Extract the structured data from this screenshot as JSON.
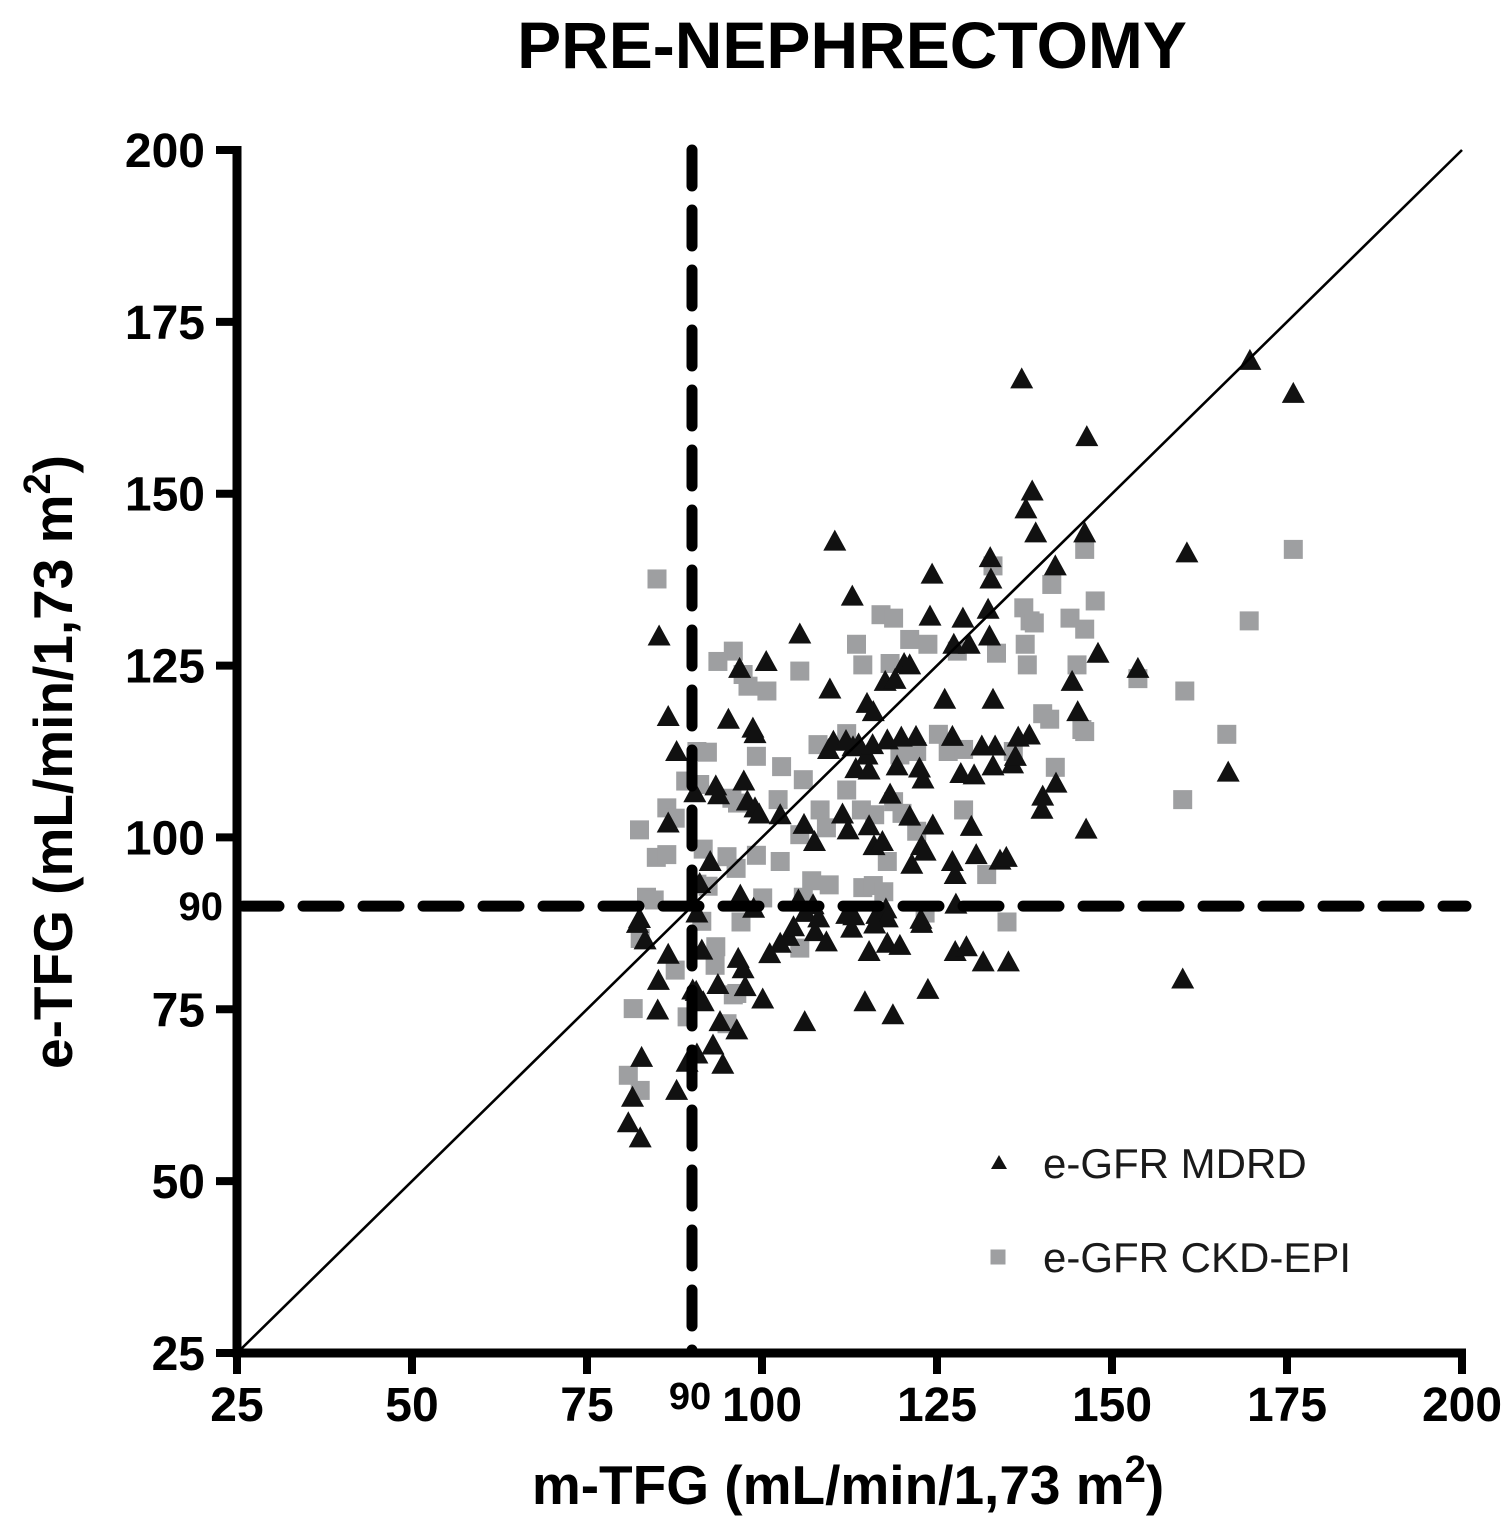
{
  "title": "PRE-NEPHRECTOMY",
  "chart_data": {
    "type": "scatter",
    "title": "PRE-NEPHRECTOMY",
    "xlabel": "m-TFG (mL/min/1,73 m²)",
    "ylabel": "e-TFG (mL/min/1,73 m²)",
    "xlim": [
      25,
      200
    ],
    "ylim": [
      25,
      200
    ],
    "x_ticks": [
      25,
      50,
      75,
      100,
      125,
      150,
      175,
      200
    ],
    "y_ticks": [
      25,
      50,
      75,
      100,
      125,
      150,
      175,
      200
    ],
    "threshold_value": 90,
    "threshold_label": "90",
    "grid": false,
    "identity_line": true,
    "reference_lines": {
      "vertical_x": 90,
      "horizontal_y": 90,
      "style": "dashed"
    },
    "legend_position": "bottom-right",
    "colors": {
      "mdrd": "#111111",
      "ckdepi": "#9e9fa1",
      "axis": "#000000"
    },
    "series": [
      {
        "name": "e-GFR MDRD",
        "marker": "triangle",
        "color": "#111111",
        "points": [
          [
            137.1,
            166.7
          ],
          [
            138.6,
            150.4
          ],
          [
            137.7,
            147.8
          ],
          [
            139.1,
            144.3
          ],
          [
            110.4,
            143.1
          ],
          [
            132.6,
            140.7
          ],
          [
            132.7,
            137.6
          ],
          [
            124.3,
            138.3
          ],
          [
            112.9,
            135.1
          ],
          [
            124.0,
            132.2
          ],
          [
            128.7,
            131.9
          ],
          [
            132.3,
            133.2
          ],
          [
            105.4,
            129.6
          ],
          [
            85.3,
            129.3
          ],
          [
            132.5,
            129.3
          ],
          [
            127.4,
            128.1
          ],
          [
            129.6,
            128.1
          ],
          [
            96.8,
            124.6
          ],
          [
            100.6,
            125.6
          ],
          [
            120.3,
            125.3
          ],
          [
            121.1,
            125.1
          ],
          [
            117.6,
            122.7
          ],
          [
            119.0,
            123.0
          ],
          [
            109.7,
            121.6
          ],
          [
            115.0,
            119.5
          ],
          [
            115.9,
            118.3
          ],
          [
            126.1,
            120.1
          ],
          [
            133.0,
            120.1
          ],
          [
            86.6,
            117.6
          ],
          [
            95.2,
            117.2
          ],
          [
            98.7,
            115.9
          ],
          [
            169.7,
            169.4
          ],
          [
            175.9,
            164.6
          ],
          [
            146.4,
            158.3
          ],
          [
            146.1,
            144.3
          ],
          [
            141.9,
            139.5
          ],
          [
            160.7,
            141.4
          ],
          [
            148.0,
            126.8
          ],
          [
            153.7,
            124.6
          ],
          [
            144.3,
            122.7
          ],
          [
            145.1,
            118.3
          ],
          [
            99.0,
            115.1
          ],
          [
            109.5,
            112.8
          ],
          [
            110.2,
            114.0
          ],
          [
            112.0,
            114.1
          ],
          [
            113.0,
            113.2
          ],
          [
            113.8,
            113.6
          ],
          [
            115.0,
            112.0
          ],
          [
            115.8,
            113.5
          ],
          [
            117.9,
            114.2
          ],
          [
            119.9,
            114.6
          ],
          [
            122.0,
            114.7
          ],
          [
            127.2,
            114.7
          ],
          [
            131.4,
            113.3
          ],
          [
            133.3,
            113.3
          ],
          [
            136.6,
            114.6
          ],
          [
            138.2,
            114.9
          ],
          [
            87.8,
            112.5
          ],
          [
            113.4,
            110.0
          ],
          [
            115.3,
            109.8
          ],
          [
            119.3,
            110.4
          ],
          [
            122.5,
            110.1
          ],
          [
            123.0,
            108.5
          ],
          [
            128.4,
            109.3
          ],
          [
            130.3,
            109.1
          ],
          [
            133.0,
            110.4
          ],
          [
            135.8,
            110.7
          ],
          [
            136.2,
            111.8
          ],
          [
            93.4,
            107.5
          ],
          [
            97.4,
            108.2
          ],
          [
            93.8,
            106.2
          ],
          [
            90.4,
            106.5
          ],
          [
            97.9,
            105.3
          ],
          [
            99.0,
            104.3
          ],
          [
            99.6,
            103.4
          ],
          [
            102.6,
            103.3
          ],
          [
            106.0,
            101.9
          ],
          [
            107.5,
            99.4
          ],
          [
            111.5,
            103.4
          ],
          [
            112.3,
            101.1
          ],
          [
            115.3,
            101.7
          ],
          [
            116.0,
            98.8
          ],
          [
            117.2,
            99.4
          ],
          [
            118.3,
            106.3
          ],
          [
            121.1,
            103.1
          ],
          [
            121.4,
            96.1
          ],
          [
            122.8,
            98.8
          ],
          [
            123.3,
            98.0
          ],
          [
            124.4,
            101.8
          ],
          [
            127.2,
            96.5
          ],
          [
            127.6,
            94.6
          ],
          [
            129.9,
            101.6
          ],
          [
            130.6,
            97.5
          ],
          [
            134.0,
            96.7
          ],
          [
            134.9,
            97.1
          ],
          [
            86.6,
            102.1
          ],
          [
            92.6,
            96.5
          ],
          [
            82.5,
            88.2
          ],
          [
            83.3,
            85.1
          ],
          [
            90.7,
            89.0
          ],
          [
            91.1,
            93.3
          ],
          [
            96.9,
            91.6
          ],
          [
            98.8,
            89.7
          ],
          [
            105.2,
            90.9
          ],
          [
            107.3,
            90.2
          ],
          [
            106.2,
            89.1
          ],
          [
            108.1,
            88.3
          ],
          [
            112.1,
            88.8
          ],
          [
            113.1,
            88.6
          ],
          [
            116.4,
            88.8
          ],
          [
            117.7,
            89.6
          ],
          [
            117.9,
            88.3
          ],
          [
            122.7,
            88.1
          ],
          [
            127.7,
            90.3
          ],
          [
            82.2,
            87.5
          ],
          [
            86.6,
            83.0
          ],
          [
            91.4,
            83.6
          ],
          [
            96.6,
            82.4
          ],
          [
            97.3,
            80.9
          ],
          [
            103.8,
            85.6
          ],
          [
            102.6,
            84.6
          ],
          [
            101.1,
            83.1
          ],
          [
            104.5,
            87.0
          ],
          [
            107.6,
            86.3
          ],
          [
            109.2,
            84.8
          ],
          [
            112.8,
            86.8
          ],
          [
            115.3,
            83.4
          ],
          [
            116.1,
            87.4
          ],
          [
            117.9,
            84.6
          ],
          [
            119.7,
            84.3
          ],
          [
            122.8,
            87.5
          ],
          [
            127.6,
            83.4
          ],
          [
            129.2,
            84.1
          ],
          [
            131.6,
            81.9
          ],
          [
            135.2,
            81.9
          ],
          [
            85.2,
            79.2
          ],
          [
            90.1,
            77.8
          ],
          [
            142.0,
            107.9
          ],
          [
            140.1,
            106.0
          ],
          [
            140.0,
            104.1
          ],
          [
            166.6,
            109.5
          ],
          [
            146.3,
            101.2
          ],
          [
            160.1,
            79.4
          ],
          [
            85.1,
            74.9
          ],
          [
            90.6,
            77.6
          ],
          [
            91.6,
            76.1
          ],
          [
            93.7,
            78.6
          ],
          [
            97.6,
            78.3
          ],
          [
            100.1,
            76.5
          ],
          [
            94.0,
            73.2
          ],
          [
            96.4,
            72.0
          ],
          [
            93.0,
            69.8
          ],
          [
            94.4,
            67.0
          ],
          [
            89.3,
            67.3
          ],
          [
            90.7,
            68.5
          ],
          [
            82.8,
            68.0
          ],
          [
            87.8,
            63.2
          ],
          [
            81.5,
            62.2
          ],
          [
            80.9,
            58.5
          ],
          [
            82.6,
            56.3
          ],
          [
            106.1,
            73.2
          ],
          [
            114.7,
            76.1
          ],
          [
            118.7,
            74.2
          ],
          [
            123.7,
            77.9
          ]
        ]
      },
      {
        "name": "e-GFR CKD-EPI",
        "marker": "square",
        "color": "#9e9fa1",
        "points": [
          [
            85.0,
            137.6
          ],
          [
            117.0,
            132.4
          ],
          [
            118.8,
            131.9
          ],
          [
            133.0,
            139.5
          ],
          [
            95.9,
            127.1
          ],
          [
            93.7,
            125.6
          ],
          [
            97.3,
            123.7
          ],
          [
            113.5,
            128.1
          ],
          [
            121.1,
            128.8
          ],
          [
            123.7,
            128.1
          ],
          [
            114.4,
            125.1
          ],
          [
            118.3,
            125.3
          ],
          [
            127.9,
            127.1
          ],
          [
            133.5,
            126.8
          ],
          [
            137.4,
            133.4
          ],
          [
            138.3,
            131.5
          ],
          [
            137.6,
            128.1
          ],
          [
            98.0,
            122.0
          ],
          [
            100.7,
            121.3
          ],
          [
            105.4,
            124.2
          ],
          [
            146.1,
            141.9
          ],
          [
            175.9,
            141.9
          ],
          [
            141.4,
            136.8
          ],
          [
            138.9,
            131.2
          ],
          [
            147.6,
            134.4
          ],
          [
            144.0,
            131.9
          ],
          [
            146.1,
            130.3
          ],
          [
            137.9,
            125.1
          ],
          [
            145.0,
            125.1
          ],
          [
            169.6,
            131.5
          ],
          [
            153.7,
            123.1
          ],
          [
            160.4,
            121.3
          ],
          [
            166.4,
            115.0
          ],
          [
            140.1,
            118.0
          ],
          [
            141.1,
            117.2
          ],
          [
            145.7,
            115.7
          ],
          [
            90.7,
            112.5
          ],
          [
            92.2,
            112.4
          ],
          [
            99.2,
            111.8
          ],
          [
            102.8,
            110.3
          ],
          [
            108.0,
            113.5
          ],
          [
            112.1,
            115.1
          ],
          [
            119.7,
            112.0
          ],
          [
            122.1,
            112.5
          ],
          [
            125.2,
            115.0
          ],
          [
            126.6,
            112.5
          ],
          [
            128.8,
            112.8
          ],
          [
            135.9,
            112.5
          ],
          [
            86.4,
            104.3
          ],
          [
            89.1,
            108.2
          ],
          [
            91.1,
            107.7
          ],
          [
            95.7,
            105.7
          ],
          [
            96.5,
            105.0
          ],
          [
            102.3,
            105.5
          ],
          [
            105.9,
            108.4
          ],
          [
            108.3,
            104.0
          ],
          [
            109.2,
            101.4
          ],
          [
            112.1,
            106.9
          ],
          [
            114.2,
            104.0
          ],
          [
            116.1,
            103.3
          ],
          [
            118.8,
            105.2
          ],
          [
            120.0,
            103.5
          ],
          [
            128.8,
            104.0
          ],
          [
            122.1,
            100.9
          ],
          [
            132.1,
            94.6
          ],
          [
            87.6,
            102.8
          ],
          [
            82.5,
            101.1
          ],
          [
            84.9,
            97.1
          ],
          [
            91.6,
            98.3
          ],
          [
            95.0,
            97.2
          ],
          [
            96.3,
            95.5
          ],
          [
            99.2,
            97.4
          ],
          [
            102.6,
            96.5
          ],
          [
            105.4,
            100.4
          ],
          [
            107.1,
            93.7
          ],
          [
            109.6,
            93.1
          ],
          [
            114.4,
            92.7
          ],
          [
            115.9,
            93.0
          ],
          [
            117.9,
            96.5
          ],
          [
            86.4,
            97.5
          ],
          [
            90.7,
            93.2
          ],
          [
            92.3,
            92.9
          ],
          [
            83.5,
            91.3
          ],
          [
            84.6,
            90.9
          ],
          [
            91.4,
            87.8
          ],
          [
            97.0,
            87.7
          ],
          [
            100.1,
            91.2
          ],
          [
            105.9,
            91.3
          ],
          [
            117.4,
            92.1
          ],
          [
            123.3,
            89.0
          ],
          [
            135.0,
            87.7
          ],
          [
            93.4,
            84.1
          ],
          [
            93.3,
            81.4
          ],
          [
            95.9,
            77.1
          ],
          [
            105.4,
            83.9
          ],
          [
            82.6,
            85.3
          ],
          [
            87.6,
            80.7
          ],
          [
            146.1,
            115.4
          ],
          [
            141.9,
            110.2
          ],
          [
            160.1,
            105.5
          ],
          [
            81.6,
            75.1
          ],
          [
            80.9,
            65.4
          ],
          [
            82.6,
            63.2
          ],
          [
            89.3,
            73.9
          ],
          [
            96.4,
            77.3
          ],
          [
            95.0,
            72.9
          ]
        ]
      }
    ],
    "legend": [
      {
        "label": "e-GFR MDRD",
        "marker": "triangle-icon",
        "color": "#111111"
      },
      {
        "label": "e-GFR CKD-EPI",
        "marker": "square-icon",
        "color": "#9e9fa1"
      }
    ]
  }
}
